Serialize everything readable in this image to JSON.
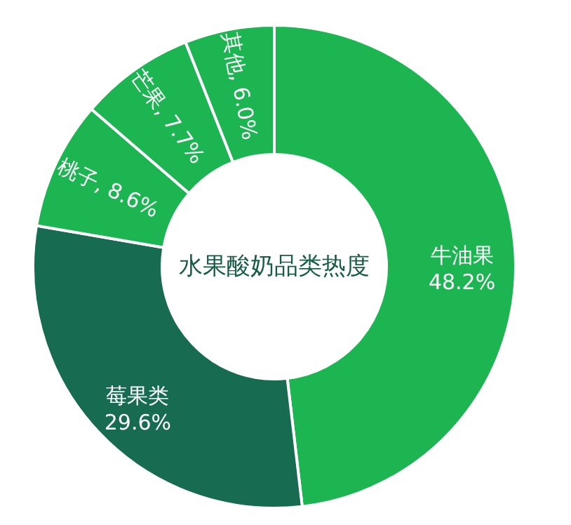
{
  "chart_data": {
    "type": "donut",
    "title": "水果酸奶品类热度",
    "categories": [
      "牛油果",
      "莓果类",
      "桃子",
      "芒果",
      "其他"
    ],
    "values": [
      48.2,
      29.6,
      8.6,
      7.7,
      6.0
    ],
    "value_labels": [
      "48.2%",
      "29.6%",
      "8.6%",
      "7.7%",
      "6.0%"
    ],
    "colors": [
      "#1db552",
      "#176b50",
      "#1db552",
      "#1db552",
      "#1db552"
    ]
  }
}
